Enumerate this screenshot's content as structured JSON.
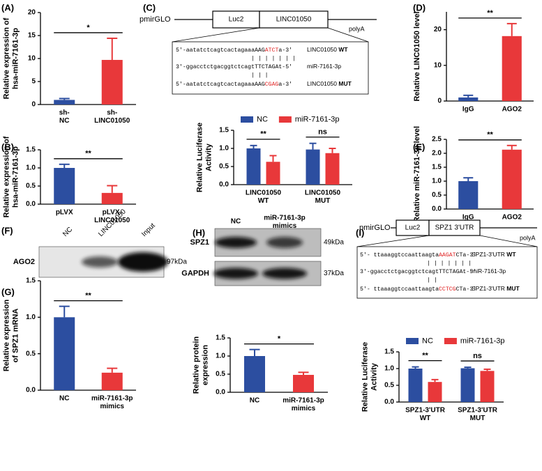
{
  "panel_labels": [
    "(A)",
    "(B)",
    "(C)",
    "(D)",
    "(E)",
    "(F)",
    "(G)",
    "(H)",
    "(I)"
  ],
  "chart_data": [
    {
      "type": "bar",
      "ylabel": "Relative expression of\nhsa-miR-7161-3p",
      "categories": [
        "sh-\nNC",
        "sh-\nLINC01050"
      ],
      "values": [
        1.0,
        9.7
      ],
      "errors": [
        0.3,
        4.7
      ],
      "colors": [
        "#2c4ea0",
        "#e8383a"
      ],
      "ylim": [
        0,
        20
      ],
      "yticks": [
        0,
        5,
        10,
        15,
        20
      ],
      "significance": "*"
    },
    {
      "type": "bar",
      "ylabel": "Relative expression of\nhsa-miR-7161-3p",
      "categories": [
        "pLVX",
        "pLVX-\nLINC01050"
      ],
      "values": [
        1.0,
        0.31
      ],
      "errors": [
        0.1,
        0.2
      ],
      "colors": [
        "#2c4ea0",
        "#e8383a"
      ],
      "ylim": [
        0,
        1.5
      ],
      "yticks": [
        {
          "value": 0,
          "label": "0.0"
        },
        0.5,
        {
          "value": 1,
          "label": "1.0"
        },
        1.5
      ],
      "significance": "**"
    },
    {
      "type": "grouped_bar",
      "ylabel": "Relative Luciferase\nActivity",
      "categories": [
        "LINC01050\nWT",
        "LINC01050\nMUT"
      ],
      "series": [
        {
          "name": "NC",
          "color": "#2c4ea0",
          "values": [
            1.0,
            0.97
          ],
          "errors": [
            0.08,
            0.17
          ]
        },
        {
          "name": "miR-7161-3p",
          "color": "#e8383a",
          "values": [
            0.63,
            0.87
          ],
          "errors": [
            0.17,
            0.13
          ]
        }
      ],
      "ylim": [
        0,
        1.5
      ],
      "yticks": [
        {
          "value": 0,
          "label": "0.0"
        },
        0.5,
        {
          "value": 1,
          "label": "1.0"
        },
        1.5
      ],
      "significance": [
        "**",
        "ns"
      ],
      "legend": "top"
    },
    {
      "type": "bar",
      "ylabel": "Relative LINC01050 level",
      "categories": [
        "IgG",
        "AGO2"
      ],
      "values": [
        1.0,
        18.2
      ],
      "errors": [
        0.6,
        3.5
      ],
      "colors": [
        "#2c4ea0",
        "#e8383a"
      ],
      "ylim": [
        0,
        25
      ],
      "yticks": [
        0,
        10,
        20
      ],
      "significance": "**"
    },
    {
      "type": "bar",
      "ylabel": "Relative miR-7161-3p level",
      "categories": [
        "IgG",
        "AGO2"
      ],
      "values": [
        1.0,
        2.13
      ],
      "errors": [
        0.12,
        0.15
      ],
      "colors": [
        "#2c4ea0",
        "#e8383a"
      ],
      "ylim": [
        0,
        2.5
      ],
      "yticks": [
        {
          "value": 0,
          "label": "0.0"
        },
        0.5,
        {
          "value": 1,
          "label": "1.0"
        },
        1.5,
        {
          "value": 2,
          "label": "2.0"
        },
        2.5
      ],
      "significance": "**"
    },
    {
      "type": "bar",
      "ylabel": "Relative expression\nof SPZ1 mRNA",
      "categories": [
        "NC",
        "miR-7161-3p\nmimics"
      ],
      "values": [
        1.0,
        0.24
      ],
      "errors": [
        0.15,
        0.06
      ],
      "colors": [
        "#2c4ea0",
        "#e8383a"
      ],
      "ylim": [
        0,
        1.5
      ],
      "yticks": [
        {
          "value": 0,
          "label": "0.0"
        },
        0.5,
        {
          "value": 1,
          "label": "1.0"
        },
        1.5
      ],
      "significance": "**"
    },
    {
      "type": "bar",
      "ylabel": "Relative protein\nexpression",
      "categories": [
        "NC",
        "miR-7161-3p\nmimics"
      ],
      "values": [
        1.0,
        0.48
      ],
      "errors": [
        0.18,
        0.07
      ],
      "colors": [
        "#2c4ea0",
        "#e8383a"
      ],
      "ylim": [
        0,
        1.5
      ],
      "yticks": [
        {
          "value": 0,
          "label": "0.0"
        },
        0.5,
        {
          "value": 1,
          "label": "1.0"
        },
        1.5
      ],
      "significance": "*"
    },
    {
      "type": "grouped_bar",
      "ylabel": "Relative Luciferase\nActivity",
      "categories": [
        "SPZ1-3'UTR\nWT",
        "SPZ1-3'UTR\nMUT"
      ],
      "series": [
        {
          "name": "NC",
          "color": "#2c4ea0",
          "values": [
            1.0,
            1.01
          ],
          "errors": [
            0.05,
            0.03
          ]
        },
        {
          "name": "miR-7161-3p",
          "color": "#e8383a",
          "values": [
            0.6,
            0.93
          ],
          "errors": [
            0.07,
            0.05
          ]
        }
      ],
      "ylim": [
        0,
        1.5
      ],
      "yticks": [
        {
          "value": 0,
          "label": "0.0"
        },
        0.5,
        {
          "value": 1,
          "label": "1.0"
        },
        1.5
      ],
      "significance": [
        "**",
        "ns"
      ],
      "legend": "top"
    }
  ],
  "diagrams": [
    {
      "vector": "pmirGLO",
      "boxes": [
        "Luc2",
        "LINC01050"
      ],
      "tail": "polyA",
      "rows": [
        {
          "parts": [
            {
              "text": "5'-aatatctcagtcactagaaaAAG"
            },
            {
              "text": "ATCT",
              "color": "#e02020"
            },
            {
              "text": "a-3'"
            }
          ],
          "label": "LINC01050",
          "tag": "WT"
        },
        {
          "parts": [
            {
              "text": "| | | | | | |"
            }
          ]
        },
        {
          "parts": [
            {
              "text": "3'-ggacctctgacggtctcagtTTCTAGAt-5'"
            }
          ],
          "label": "miR-7161-3p"
        },
        {
          "parts": [
            {
              "text": "| | |"
            }
          ]
        },
        {
          "parts": [
            {
              "text": "5'-aatatctcagtcactagaaaAAG"
            },
            {
              "text": "CGAG",
              "color": "#e02020"
            },
            {
              "text": "a-3'"
            }
          ],
          "label": "LINC01050",
          "tag": "MUT"
        }
      ]
    },
    {
      "vector": "pmirGLO",
      "boxes": [
        "Luc2",
        "SPZ1 3'UTR"
      ],
      "tail": "polyA",
      "rows": [
        {
          "parts": [
            {
              "text": "5'- ttaaaggtccaattaagta"
            },
            {
              "text": "AAGAT",
              "color": "#e02020"
            },
            {
              "text": "CTa-3'"
            }
          ],
          "label": "SPZ1-3'UTR",
          "tag": "WT"
        },
        {
          "parts": [
            {
              "text": "| | | | | | |"
            }
          ]
        },
        {
          "parts": [
            {
              "text": "3'-ggacctctgacggtctcagtTTCTAGAt-5'"
            }
          ],
          "label": "miR-7161-3p"
        },
        {
          "parts": [
            {
              "text": "| |"
            }
          ]
        },
        {
          "parts": [
            {
              "text": "5'- ttaaaggtccaattaagta"
            },
            {
              "text": "CCTCG",
              "color": "#e02020"
            },
            {
              "text": "CTa-3'"
            }
          ],
          "label": "SPZ1-3'UTR",
          "tag": "MUT"
        }
      ]
    }
  ],
  "blots": [
    {
      "lanes": [
        "NC",
        "LINC01050",
        "Input"
      ],
      "rows": [
        {
          "name": "AGO2",
          "size": "97kDa"
        }
      ]
    },
    {
      "lanes": [
        "NC",
        "miR-7161-3p\nmimics"
      ],
      "rows": [
        {
          "name": "SPZ1",
          "size": "49kDa"
        },
        {
          "name": "GAPDH",
          "size": "37kDa"
        }
      ]
    }
  ]
}
